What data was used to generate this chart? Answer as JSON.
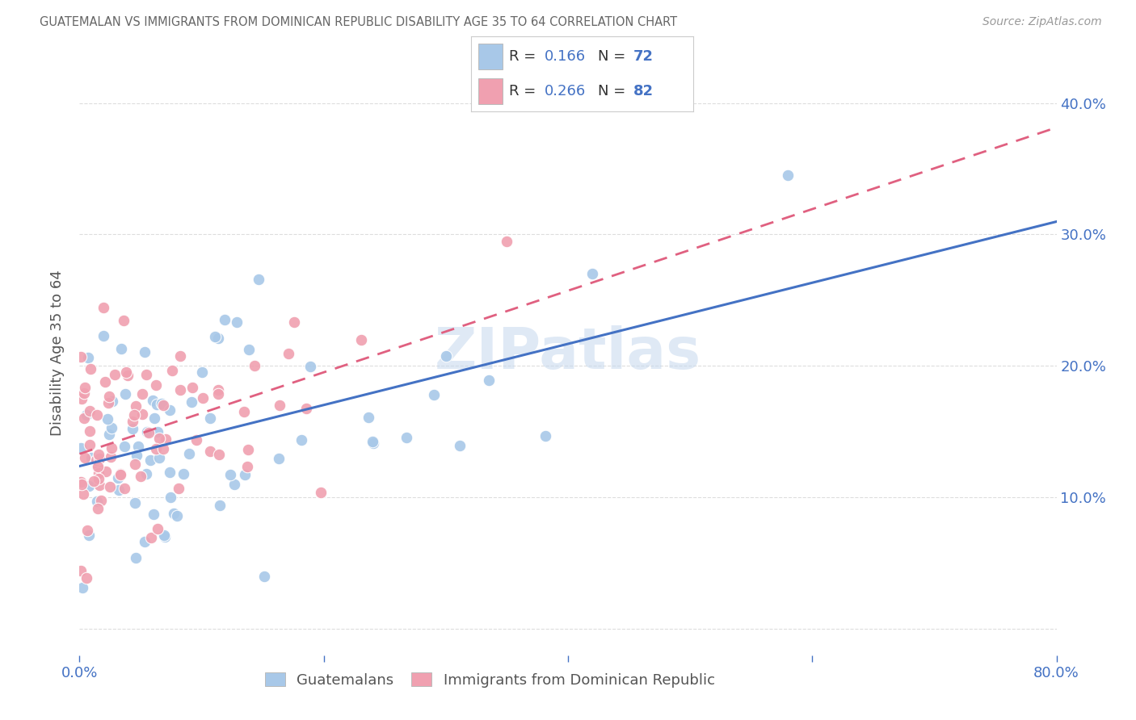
{
  "title": "GUATEMALAN VS IMMIGRANTS FROM DOMINICAN REPUBLIC DISABILITY AGE 35 TO 64 CORRELATION CHART",
  "source": "Source: ZipAtlas.com",
  "ylabel": "Disability Age 35 to 64",
  "xlim": [
    0.0,
    0.8
  ],
  "ylim": [
    -0.02,
    0.44
  ],
  "series1_label": "Guatemalans",
  "series2_label": "Immigrants from Dominican Republic",
  "series1_color": "#A8C8E8",
  "series2_color": "#F0A0B0",
  "series1_line_color": "#4472C4",
  "series2_line_color": "#E06080",
  "series1_R": 0.166,
  "series1_N": 72,
  "series2_R": 0.266,
  "series2_N": 82,
  "legend_blue_color": "#4472C4",
  "watermark": "ZIPatlas",
  "background_color": "#FFFFFF",
  "grid_color": "#DDDDDD",
  "title_color": "#666666",
  "axis_tick_color": "#4472C4",
  "ylabel_color": "#555555",
  "source_color": "#999999"
}
